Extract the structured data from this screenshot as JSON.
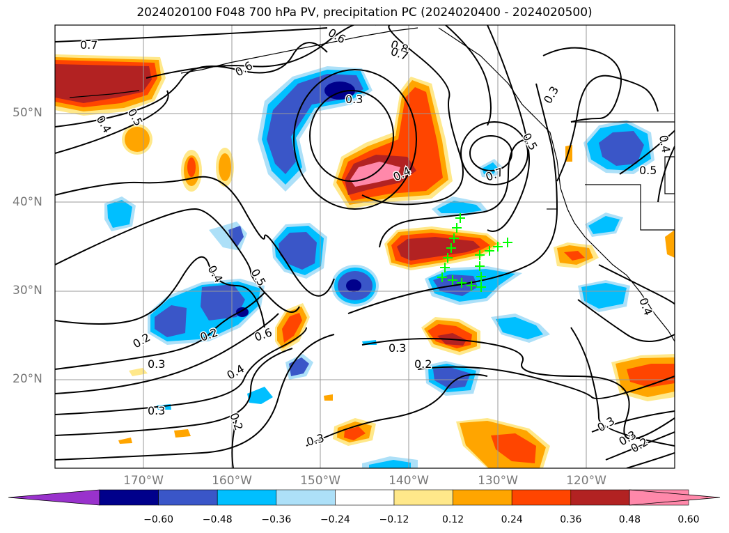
{
  "title": "2024020100 F048 700 hPa PV, precipitation PC (2024020400 - 2024020500)",
  "axes": {
    "lat_labels": [
      "50°N",
      "40°N",
      "30°N",
      "20°N"
    ],
    "lon_labels": [
      "170°W",
      "160°W",
      "150°W",
      "140°W",
      "130°W",
      "120°W"
    ]
  },
  "contour_labels": [
    "0.7",
    "0.6",
    "0.6",
    "0.8",
    "0.7",
    "0.4",
    "0.5",
    "0.3",
    "0.4",
    "0.7",
    "0.5",
    "0.3",
    "0.4",
    "0.5",
    "0.4",
    "0.5",
    "0.2",
    "0.2",
    "0.3",
    "0.6",
    "0.4",
    "0.3",
    "0.2",
    "0.3",
    "0.2",
    "0.3",
    "0.3",
    "0.3",
    "0.2",
    "0.4"
  ],
  "colorbar": {
    "ticks": [
      "−0.60",
      "−0.48",
      "−0.36",
      "−0.24",
      "−0.12",
      "0.12",
      "0.24",
      "0.36",
      "0.48",
      "0.60"
    ],
    "colors": [
      "#9932cc",
      "#00008b",
      "#3a56c8",
      "#00bfff",
      "#ade0f8",
      "#ffffff",
      "#ffe88a",
      "#ffa500",
      "#ff4500",
      "#b22222",
      "#ff88aa",
      "#ff88aa"
    ]
  },
  "colors": {
    "contour": "#000000",
    "coast": "#000000",
    "marker": "#00ff00",
    "grid": "#999999"
  }
}
